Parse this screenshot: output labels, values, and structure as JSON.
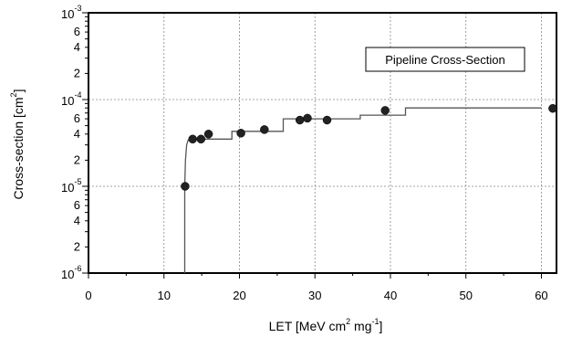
{
  "chart_data": {
    "type": "scatter",
    "title": "",
    "legend_box": "Pipeline Cross-Section",
    "legend_placement": "top-right",
    "xlabel": {
      "text": "LET [MeV cm",
      "sup1": "2",
      "mid": " mg",
      "sup2": "-1",
      "tail": "]"
    },
    "ylabel": {
      "text": "Cross-section [cm",
      "sup": "2",
      "tail": "]"
    },
    "xlim": [
      0,
      62
    ],
    "ylim": [
      1e-06,
      0.001
    ],
    "yscale": "log",
    "grid": true,
    "x_ticks": [
      0,
      10,
      20,
      30,
      40,
      50,
      60
    ],
    "x_tick_labels": [
      "0",
      "10",
      "20",
      "30",
      "40",
      "50",
      "60"
    ],
    "y_decades": [
      {
        "value": 1e-06,
        "base": "10",
        "exp": "-6"
      },
      {
        "value": 1e-05,
        "base": "10",
        "exp": "-5"
      },
      {
        "value": 0.0001,
        "base": "10",
        "exp": "-4"
      },
      {
        "value": 0.001,
        "base": "10",
        "exp": "-3"
      }
    ],
    "y_minor_labeled": [
      {
        "value": 2e-06,
        "label": "2"
      },
      {
        "value": 4e-06,
        "label": "4"
      },
      {
        "value": 6e-06,
        "label": "6"
      },
      {
        "value": 2e-05,
        "label": "2"
      },
      {
        "value": 4e-05,
        "label": "4"
      },
      {
        "value": 6e-05,
        "label": "6"
      },
      {
        "value": 0.0002,
        "label": "2"
      },
      {
        "value": 0.0004,
        "label": "4"
      },
      {
        "value": 0.0006,
        "label": "6"
      }
    ],
    "series": [
      {
        "kind": "points",
        "x": [
          12.8,
          13.8,
          14.9,
          15.9,
          20.2,
          23.3,
          28.0,
          29.0,
          31.6,
          39.3,
          61.5
        ],
        "y": [
          1e-05,
          3.5e-05,
          3.5e-05,
          4e-05,
          4.1e-05,
          4.5e-05,
          5.8e-05,
          6.1e-05,
          5.8e-05,
          7.5e-05,
          7.9e-05
        ]
      },
      {
        "kind": "step-line",
        "x": [
          12.75,
          12.75,
          12.85,
          13.0,
          13.2,
          13.5,
          19.0,
          19.0,
          25.8,
          25.8,
          36.0,
          36.0,
          42.0,
          42.0,
          60.0
        ],
        "y": [
          1e-06,
          1e-05,
          2e-05,
          3e-05,
          3.4e-05,
          3.5e-05,
          3.5e-05,
          4.3e-05,
          4.3e-05,
          6e-05,
          6e-05,
          6.6e-05,
          6.6e-05,
          8e-05,
          8e-05
        ]
      }
    ]
  }
}
